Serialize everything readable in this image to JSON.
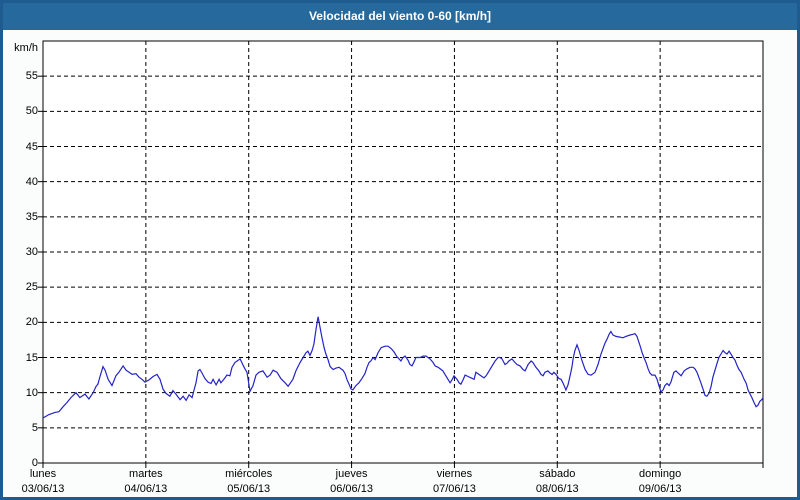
{
  "window": {
    "title": "Velocidad del viento 0-60 [km/h]"
  },
  "chart_data": {
    "type": "line",
    "title": "Velocidad del viento 0-60 [km/h]",
    "ylabel": "km/h",
    "xlabel": "",
    "ylim": [
      0,
      60
    ],
    "xlim": [
      0,
      168
    ],
    "x_unit": "hours since monday 00:00",
    "grid": "dashed",
    "legend_position": "none",
    "y_ticks": [
      0,
      5,
      10,
      15,
      20,
      25,
      30,
      35,
      40,
      45,
      50,
      55
    ],
    "x_day_ticks": [
      {
        "hour": 0,
        "weekday": "lunes",
        "date": "03/06/13"
      },
      {
        "hour": 24,
        "weekday": "martes",
        "date": "04/06/13"
      },
      {
        "hour": 48,
        "weekday": "miércoles",
        "date": "05/06/13"
      },
      {
        "hour": 72,
        "weekday": "jueves",
        "date": "06/06/13"
      },
      {
        "hour": 96,
        "weekday": "viernes",
        "date": "07/06/13"
      },
      {
        "hour": 120,
        "weekday": "sábado",
        "date": "08/06/13"
      },
      {
        "hour": 144,
        "weekday": "domingo",
        "date": "09/06/13"
      }
    ],
    "colors": {
      "line": "#2323c8",
      "axis": "#000000",
      "grid": "#000000",
      "plot_bg": "#ffffff",
      "page_bg": "#fbfdfc",
      "titlebar_bg": "#26699c",
      "titlebar_text": "#ffffff",
      "frame_border": "#1e5c90"
    },
    "series": [
      {
        "name": "Velocidad del viento",
        "points": [
          [
            0,
            6.4
          ],
          [
            1.4,
            6.9
          ],
          [
            2.8,
            7.2
          ],
          [
            3.7,
            7.3
          ],
          [
            4.7,
            8
          ],
          [
            5.6,
            8.6
          ],
          [
            6.5,
            9.3
          ],
          [
            7.7,
            10
          ],
          [
            8.6,
            9.3
          ],
          [
            9.8,
            9.8
          ],
          [
            10.7,
            9.1
          ],
          [
            11.7,
            10
          ],
          [
            12.4,
            10.9
          ],
          [
            12.8,
            11.2
          ],
          [
            13.3,
            12.3
          ],
          [
            14,
            13.7
          ],
          [
            14.5,
            13.2
          ],
          [
            15.2,
            11.9
          ],
          [
            16.1,
            11
          ],
          [
            17,
            12.4
          ],
          [
            17.7,
            12.9
          ],
          [
            18.7,
            13.8
          ],
          [
            19.4,
            13.2
          ],
          [
            20.1,
            12.9
          ],
          [
            20.8,
            12.6
          ],
          [
            21.7,
            12.7
          ],
          [
            22.4,
            12.2
          ],
          [
            23.1,
            11.9
          ],
          [
            23.8,
            11.5
          ],
          [
            24.7,
            11.8
          ],
          [
            25.7,
            12.3
          ],
          [
            26.6,
            12.6
          ],
          [
            27.3,
            11.9
          ],
          [
            28,
            10.5
          ],
          [
            28.7,
            9.9
          ],
          [
            29.6,
            9.5
          ],
          [
            30.3,
            10.3
          ],
          [
            31,
            9.8
          ],
          [
            32,
            9
          ],
          [
            32.7,
            9.5
          ],
          [
            33.4,
            8.9
          ],
          [
            34.1,
            9.7
          ],
          [
            34.8,
            9.3
          ],
          [
            35.2,
            10.3
          ],
          [
            35.7,
            11.4
          ],
          [
            36.2,
            13.1
          ],
          [
            36.6,
            13.3
          ],
          [
            37.1,
            12.8
          ],
          [
            37.8,
            12
          ],
          [
            38.5,
            11.5
          ],
          [
            39.2,
            11.3
          ],
          [
            39.7,
            11.9
          ],
          [
            40.4,
            11.1
          ],
          [
            41.1,
            11.9
          ],
          [
            41.5,
            11.4
          ],
          [
            42.2,
            11.9
          ],
          [
            42.9,
            12.5
          ],
          [
            43.6,
            12.4
          ],
          [
            44.1,
            13.6
          ],
          [
            44.8,
            14.3
          ],
          [
            45.3,
            14.5
          ],
          [
            46,
            14.8
          ],
          [
            46.7,
            13.9
          ],
          [
            47.1,
            13.4
          ],
          [
            47.6,
            12.9
          ],
          [
            48.3,
            10.2
          ],
          [
            49,
            11
          ],
          [
            49.7,
            12.5
          ],
          [
            50.4,
            12.9
          ],
          [
            51.3,
            13.1
          ],
          [
            52.3,
            12.2
          ],
          [
            53,
            12.5
          ],
          [
            53.7,
            13.2
          ],
          [
            54.6,
            12.9
          ],
          [
            55.5,
            12
          ],
          [
            56.5,
            11.4
          ],
          [
            57.2,
            10.9
          ],
          [
            58.3,
            11.9
          ],
          [
            59,
            13.1
          ],
          [
            60,
            14.3
          ],
          [
            60.7,
            15
          ],
          [
            61.4,
            15.7
          ],
          [
            61.8,
            15.9
          ],
          [
            62.3,
            15.3
          ],
          [
            62.8,
            16
          ],
          [
            63.2,
            16.9
          ],
          [
            63.7,
            19
          ],
          [
            64.2,
            20.8
          ],
          [
            64.6,
            19.4
          ],
          [
            65.1,
            17.8
          ],
          [
            65.6,
            16.4
          ],
          [
            66,
            15.5
          ],
          [
            66.5,
            14.7
          ],
          [
            67,
            13.7
          ],
          [
            67.7,
            13.3
          ],
          [
            68.4,
            13.5
          ],
          [
            69.1,
            13.6
          ],
          [
            69.5,
            13.4
          ],
          [
            70,
            13.2
          ],
          [
            70.5,
            12.7
          ],
          [
            70.9,
            11.9
          ],
          [
            71.4,
            11.2
          ],
          [
            71.9,
            10.5
          ],
          [
            72.3,
            10.4
          ],
          [
            73,
            11
          ],
          [
            73.7,
            11.4
          ],
          [
            74.4,
            12
          ],
          [
            75.1,
            12.7
          ],
          [
            75.6,
            13.6
          ],
          [
            76.1,
            14.3
          ],
          [
            76.5,
            14.5
          ],
          [
            77,
            15
          ],
          [
            77.5,
            14.7
          ],
          [
            78.2,
            15.7
          ],
          [
            78.9,
            16.4
          ],
          [
            79.8,
            16.6
          ],
          [
            80.5,
            16.6
          ],
          [
            81.2,
            16.3
          ],
          [
            81.9,
            15.8
          ],
          [
            82.6,
            15.1
          ],
          [
            83.1,
            14.8
          ],
          [
            83.5,
            14.5
          ],
          [
            84,
            15
          ],
          [
            84.5,
            15.2
          ],
          [
            85.2,
            14.6
          ],
          [
            85.6,
            14
          ],
          [
            86.1,
            13.8
          ],
          [
            86.6,
            14.4
          ],
          [
            87,
            15
          ],
          [
            88,
            15
          ],
          [
            88.7,
            15.2
          ],
          [
            89.4,
            15.2
          ],
          [
            90.3,
            14.8
          ],
          [
            91,
            14.3
          ],
          [
            91.5,
            13.8
          ],
          [
            92.2,
            13.6
          ],
          [
            92.9,
            13.3
          ],
          [
            93.3,
            13.1
          ],
          [
            93.8,
            12.6
          ],
          [
            94.5,
            11.9
          ],
          [
            95,
            11.4
          ],
          [
            95.4,
            11.8
          ],
          [
            95.9,
            12.4
          ],
          [
            96.6,
            11.9
          ],
          [
            97.1,
            11.4
          ],
          [
            97.5,
            11.2
          ],
          [
            98,
            11.8
          ],
          [
            98.5,
            12.5
          ],
          [
            99.2,
            12.3
          ],
          [
            99.9,
            12.1
          ],
          [
            100.6,
            11.9
          ],
          [
            101,
            12.9
          ],
          [
            101.7,
            12.6
          ],
          [
            102.4,
            12.3
          ],
          [
            102.9,
            12.1
          ],
          [
            103.4,
            12.4
          ],
          [
            104.1,
            13.1
          ],
          [
            104.8,
            13.8
          ],
          [
            105.5,
            14.5
          ],
          [
            106.2,
            15
          ],
          [
            106.6,
            15
          ],
          [
            107.1,
            14.8
          ],
          [
            107.8,
            14
          ],
          [
            108.3,
            14.2
          ],
          [
            108.7,
            14.5
          ],
          [
            109.4,
            14.8
          ],
          [
            110.1,
            14.3
          ],
          [
            110.6,
            14
          ],
          [
            111.3,
            13.8
          ],
          [
            112,
            13.3
          ],
          [
            112.5,
            13.1
          ],
          [
            113.2,
            14
          ],
          [
            113.9,
            14.5
          ],
          [
            114.3,
            14.3
          ],
          [
            115,
            13.6
          ],
          [
            115.7,
            13.1
          ],
          [
            116.2,
            12.6
          ],
          [
            116.7,
            12.4
          ],
          [
            117.1,
            12.9
          ],
          [
            117.8,
            13.1
          ],
          [
            118.3,
            12.8
          ],
          [
            118.8,
            12.6
          ],
          [
            119.2,
            12.9
          ],
          [
            119.7,
            12.6
          ],
          [
            120.4,
            12
          ],
          [
            120.9,
            11.9
          ],
          [
            121.3,
            11.4
          ],
          [
            121.8,
            10.7
          ],
          [
            122,
            10.4
          ],
          [
            122.5,
            11.1
          ],
          [
            123,
            12.4
          ],
          [
            123.4,
            13.6
          ],
          [
            123.7,
            14.8
          ],
          [
            124.1,
            16
          ],
          [
            124.6,
            16.8
          ],
          [
            125.1,
            16
          ],
          [
            125.8,
            14.5
          ],
          [
            126.5,
            13.3
          ],
          [
            127.2,
            12.6
          ],
          [
            127.9,
            12.5
          ],
          [
            128.8,
            12.9
          ],
          [
            129.5,
            14
          ],
          [
            130.2,
            15.5
          ],
          [
            131.1,
            17
          ],
          [
            131.6,
            17.6
          ],
          [
            132.1,
            18.3
          ],
          [
            132.5,
            18.7
          ],
          [
            133,
            18.2
          ],
          [
            133.7,
            18
          ],
          [
            134.6,
            17.9
          ],
          [
            135.3,
            17.8
          ],
          [
            136,
            18
          ],
          [
            137,
            18.2
          ],
          [
            137.7,
            18.3
          ],
          [
            138.1,
            18.4
          ],
          [
            138.6,
            18
          ],
          [
            139.3,
            16.7
          ],
          [
            139.8,
            15.7
          ],
          [
            140.2,
            15
          ],
          [
            140.7,
            14.3
          ],
          [
            141.2,
            13.4
          ],
          [
            141.6,
            12.8
          ],
          [
            142.1,
            12.5
          ],
          [
            142.8,
            12.5
          ],
          [
            143.3,
            11.9
          ],
          [
            143.7,
            11
          ],
          [
            144.2,
            10.1
          ],
          [
            144.7,
            10.4
          ],
          [
            145.1,
            11
          ],
          [
            145.6,
            11.3
          ],
          [
            146.1,
            11
          ],
          [
            146.5,
            11.5
          ],
          [
            147.2,
            12.9
          ],
          [
            147.7,
            13.1
          ],
          [
            148.2,
            12.8
          ],
          [
            148.9,
            12.4
          ],
          [
            149.6,
            13.1
          ],
          [
            150.3,
            13.4
          ],
          [
            151,
            13.6
          ],
          [
            151.7,
            13.6
          ],
          [
            152.1,
            13.4
          ],
          [
            152.6,
            12.9
          ],
          [
            153.1,
            12.1
          ],
          [
            153.5,
            11.4
          ],
          [
            154,
            10.5
          ],
          [
            154.5,
            9.6
          ],
          [
            154.9,
            9.5
          ],
          [
            155.4,
            9.9
          ],
          [
            155.9,
            10.9
          ],
          [
            156.3,
            12.2
          ],
          [
            156.8,
            13.2
          ],
          [
            157.3,
            14.2
          ],
          [
            157.7,
            15
          ],
          [
            158.2,
            15.5
          ],
          [
            158.7,
            16
          ],
          [
            159.1,
            15.7
          ],
          [
            159.6,
            15.5
          ],
          [
            160.1,
            15.9
          ],
          [
            160.5,
            15.5
          ],
          [
            161,
            15
          ],
          [
            161.5,
            14.6
          ],
          [
            161.9,
            13.9
          ],
          [
            162.4,
            13.3
          ],
          [
            162.9,
            12.9
          ],
          [
            163.6,
            11.9
          ],
          [
            164.1,
            11.3
          ],
          [
            164.5,
            10.4
          ],
          [
            165,
            9.8
          ],
          [
            165.4,
            9.3
          ],
          [
            165.9,
            8.6
          ],
          [
            166.4,
            8
          ],
          [
            166.8,
            8.2
          ],
          [
            167.3,
            8.8
          ],
          [
            167.7,
            9
          ],
          [
            168,
            9.3
          ]
        ]
      }
    ]
  }
}
